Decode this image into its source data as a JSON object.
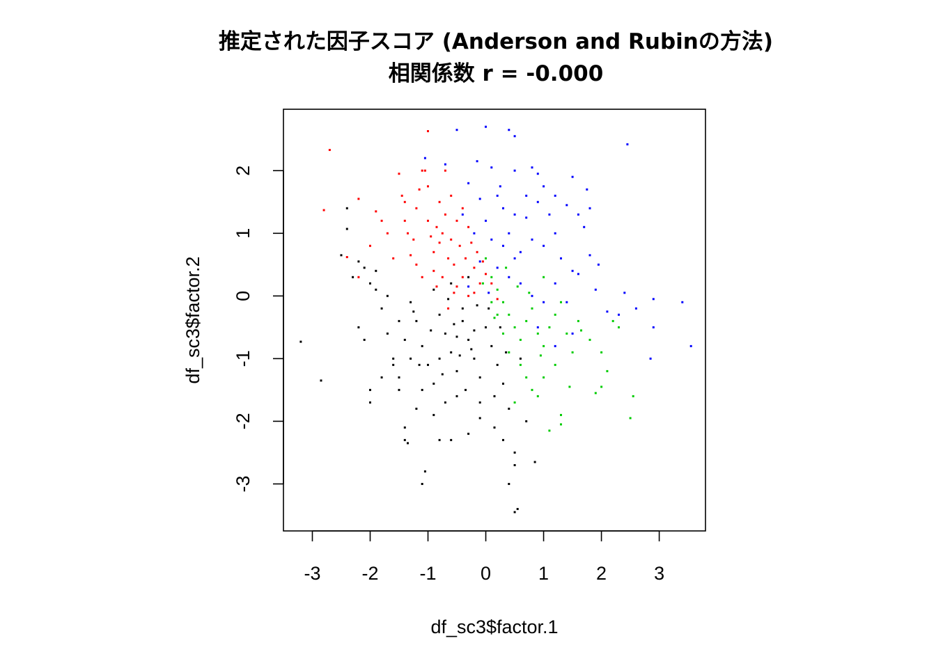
{
  "chart_data": {
    "type": "scatter",
    "title": "推定された因子スコア (Anderson and Rubinの方法)",
    "subtitle": "相関係数 r = -0.000",
    "xlabel": "df_sc3$factor.1",
    "ylabel": "df_sc3$factor.2",
    "xlim": [
      -3.5,
      3.8
    ],
    "ylim": [
      -3.75,
      2.98
    ],
    "x_ticks": [
      -3,
      -2,
      -1,
      0,
      1,
      2,
      3
    ],
    "y_ticks": [
      -3,
      -2,
      -1,
      0,
      1,
      2
    ],
    "x_tick_labels": [
      "-3",
      "-2",
      "-1",
      "0",
      "1",
      "2",
      "3"
    ],
    "y_tick_labels": [
      "-3",
      "-2",
      "-1",
      "0",
      "1",
      "2"
    ],
    "grid": false,
    "legend": "none",
    "series": [
      {
        "color": "#FF0000",
        "points": [
          [
            -2.7,
            2.33
          ],
          [
            -2.8,
            1.37
          ],
          [
            -2.2,
            1.55
          ],
          [
            -2.4,
            0.62
          ],
          [
            -2.2,
            0.3
          ],
          [
            -2.0,
            0.8
          ],
          [
            -1.9,
            1.35
          ],
          [
            -1.8,
            1.2
          ],
          [
            -1.7,
            1.0
          ],
          [
            -1.5,
            1.95
          ],
          [
            -1.45,
            1.6
          ],
          [
            -1.4,
            1.2
          ],
          [
            -1.35,
            1.0
          ],
          [
            -1.3,
            0.65
          ],
          [
            -1.25,
            0.9
          ],
          [
            -1.2,
            1.4
          ],
          [
            -1.15,
            1.7
          ],
          [
            -1.1,
            2.0
          ],
          [
            -1.05,
            2.0
          ],
          [
            -1.0,
            1.75
          ],
          [
            -1.0,
            1.2
          ],
          [
            -0.95,
            0.95
          ],
          [
            -0.9,
            0.7
          ],
          [
            -0.9,
            0.4
          ],
          [
            -0.85,
            1.1
          ],
          [
            -0.8,
            1.5
          ],
          [
            -0.8,
            0.85
          ],
          [
            -0.75,
            0.3
          ],
          [
            -0.7,
            2.0
          ],
          [
            -0.7,
            1.3
          ],
          [
            -0.65,
            0.6
          ],
          [
            -0.6,
            1.6
          ],
          [
            -0.6,
            0.9
          ],
          [
            -0.55,
            0.5
          ],
          [
            -0.5,
            1.2
          ],
          [
            -0.5,
            0.15
          ],
          [
            -0.45,
            0.8
          ],
          [
            -0.4,
            1.4
          ],
          [
            -0.4,
            0.3
          ],
          [
            -0.35,
            0.6
          ],
          [
            -0.3,
            1.1
          ],
          [
            -0.3,
            0.0
          ],
          [
            -0.25,
            0.85
          ],
          [
            -0.2,
            0.45
          ],
          [
            -0.15,
            0.7
          ],
          [
            -0.1,
            0.2
          ],
          [
            -0.05,
            0.55
          ],
          [
            0.0,
            0.35
          ],
          [
            -1.0,
            2.63
          ],
          [
            -1.4,
            1.5
          ],
          [
            -1.2,
            0.5
          ],
          [
            -0.65,
            -0.2
          ],
          [
            -0.85,
            0.15
          ],
          [
            -0.55,
            0.05
          ],
          [
            -0.2,
            0.05
          ],
          [
            0.2,
            -0.05
          ],
          [
            0.1,
            0.2
          ],
          [
            -1.6,
            0.6
          ],
          [
            -1.1,
            0.3
          ],
          [
            -0.75,
            1.0
          ]
        ]
      },
      {
        "color": "#0000FF",
        "points": [
          [
            0.0,
            2.7
          ],
          [
            -0.5,
            2.65
          ],
          [
            0.4,
            2.65
          ],
          [
            0.5,
            2.55
          ],
          [
            -0.7,
            2.1
          ],
          [
            -1.05,
            2.2
          ],
          [
            -0.15,
            2.15
          ],
          [
            0.1,
            2.05
          ],
          [
            0.5,
            2.0
          ],
          [
            0.8,
            2.05
          ],
          [
            0.9,
            1.95
          ],
          [
            1.0,
            1.75
          ],
          [
            1.5,
            1.9
          ],
          [
            1.75,
            1.7
          ],
          [
            1.8,
            1.4
          ],
          [
            2.45,
            2.42
          ],
          [
            -0.3,
            1.8
          ],
          [
            -0.1,
            1.55
          ],
          [
            0.2,
            1.6
          ],
          [
            0.3,
            1.4
          ],
          [
            0.5,
            1.3
          ],
          [
            0.7,
            1.25
          ],
          [
            0.9,
            1.5
          ],
          [
            1.2,
            1.6
          ],
          [
            1.4,
            1.45
          ],
          [
            1.6,
            1.3
          ],
          [
            1.7,
            1.1
          ],
          [
            -0.4,
            1.3
          ],
          [
            -0.2,
            1.0
          ],
          [
            0.0,
            1.2
          ],
          [
            0.1,
            0.9
          ],
          [
            0.3,
            0.8
          ],
          [
            0.4,
            1.0
          ],
          [
            0.6,
            0.7
          ],
          [
            0.8,
            0.9
          ],
          [
            1.0,
            0.8
          ],
          [
            1.2,
            1.0
          ],
          [
            1.3,
            0.6
          ],
          [
            1.5,
            0.4
          ],
          [
            1.8,
            0.65
          ],
          [
            1.95,
            0.5
          ],
          [
            -0.1,
            0.55
          ],
          [
            0.2,
            0.45
          ],
          [
            0.4,
            0.3
          ],
          [
            0.6,
            0.2
          ],
          [
            0.8,
            0.0
          ],
          [
            1.0,
            -0.1
          ],
          [
            1.2,
            0.2
          ],
          [
            1.4,
            -0.1
          ],
          [
            1.6,
            0.35
          ],
          [
            1.9,
            0.1
          ],
          [
            2.1,
            -0.25
          ],
          [
            2.3,
            -0.3
          ],
          [
            2.4,
            0.05
          ],
          [
            2.6,
            -0.2
          ],
          [
            2.9,
            -0.05
          ],
          [
            2.9,
            -0.5
          ],
          [
            3.4,
            -0.1
          ],
          [
            3.55,
            -0.8
          ],
          [
            2.85,
            -1.0
          ],
          [
            1.2,
            -0.8
          ],
          [
            1.5,
            -0.6
          ],
          [
            0.9,
            -0.5
          ],
          [
            0.5,
            0.6
          ],
          [
            0.7,
            1.6
          ],
          [
            1.1,
            1.3
          ],
          [
            0.25,
            1.75
          ],
          [
            -0.3,
            0.15
          ],
          [
            0.05,
            0.05
          ]
        ]
      },
      {
        "color": "#00CC00",
        "points": [
          [
            0.0,
            0.6
          ],
          [
            0.1,
            0.3
          ],
          [
            0.2,
            0.1
          ],
          [
            0.3,
            -0.1
          ],
          [
            0.4,
            -0.3
          ],
          [
            0.5,
            -0.5
          ],
          [
            0.6,
            -0.7
          ],
          [
            0.7,
            -0.4
          ],
          [
            0.8,
            -0.2
          ],
          [
            0.9,
            -0.6
          ],
          [
            1.0,
            -0.8
          ],
          [
            1.1,
            -0.5
          ],
          [
            1.2,
            -0.3
          ],
          [
            1.3,
            -0.1
          ],
          [
            1.4,
            -0.6
          ],
          [
            1.5,
            -0.9
          ],
          [
            1.6,
            -0.4
          ],
          [
            1.8,
            -0.7
          ],
          [
            2.0,
            -0.9
          ],
          [
            2.1,
            -1.2
          ],
          [
            2.2,
            -0.4
          ],
          [
            2.3,
            -0.5
          ],
          [
            2.0,
            -1.45
          ],
          [
            1.9,
            -1.55
          ],
          [
            2.55,
            -1.6
          ],
          [
            2.5,
            -1.95
          ],
          [
            1.3,
            -1.9
          ],
          [
            1.3,
            -2.05
          ],
          [
            1.1,
            -2.15
          ],
          [
            0.9,
            -1.6
          ],
          [
            0.7,
            -1.3
          ],
          [
            0.5,
            -1.7
          ],
          [
            0.6,
            -1.1
          ],
          [
            0.4,
            -0.9
          ],
          [
            0.3,
            -0.6
          ],
          [
            0.2,
            -0.3
          ],
          [
            0.1,
            -0.1
          ],
          [
            0.8,
            -1.5
          ],
          [
            1.0,
            -1.3
          ],
          [
            1.2,
            -1.1
          ],
          [
            1.45,
            -1.45
          ],
          [
            0.35,
            0.45
          ],
          [
            0.55,
            0.15
          ],
          [
            0.75,
            0.05
          ],
          [
            1.0,
            0.3
          ],
          [
            0.15,
            -0.35
          ],
          [
            -0.05,
            0.2
          ],
          [
            1.65,
            -0.55
          ],
          [
            0.95,
            -0.95
          ]
        ]
      },
      {
        "color": "#000000",
        "points": [
          [
            -3.2,
            -0.73
          ],
          [
            -2.85,
            -1.35
          ],
          [
            -2.4,
            1.4
          ],
          [
            -2.4,
            1.07
          ],
          [
            -2.2,
            0.55
          ],
          [
            -2.3,
            0.3
          ],
          [
            -2.1,
            0.45
          ],
          [
            -2.0,
            0.2
          ],
          [
            -2.2,
            -0.5
          ],
          [
            -2.1,
            -0.7
          ],
          [
            -2.0,
            -1.5
          ],
          [
            -2.0,
            -1.7
          ],
          [
            -1.9,
            0.1
          ],
          [
            -1.8,
            -0.2
          ],
          [
            -1.7,
            -0.6
          ],
          [
            -1.6,
            -1.0
          ],
          [
            -1.5,
            -1.3
          ],
          [
            -1.5,
            -1.5
          ],
          [
            -1.4,
            -2.1
          ],
          [
            -1.4,
            -2.3
          ],
          [
            -1.35,
            -2.35
          ],
          [
            -1.2,
            -0.4
          ],
          [
            -1.1,
            -0.8
          ],
          [
            -1.0,
            -1.1
          ],
          [
            -0.9,
            -1.4
          ],
          [
            -0.9,
            -1.9
          ],
          [
            -0.8,
            -0.3
          ],
          [
            -0.7,
            -0.6
          ],
          [
            -0.6,
            -0.9
          ],
          [
            -0.5,
            -1.2
          ],
          [
            -0.5,
            -1.6
          ],
          [
            -0.4,
            -0.4
          ],
          [
            -0.3,
            -0.7
          ],
          [
            -0.2,
            -1.0
          ],
          [
            -0.1,
            -1.3
          ],
          [
            -0.1,
            -1.7
          ],
          [
            0.0,
            -0.5
          ],
          [
            0.1,
            -0.8
          ],
          [
            0.2,
            -1.1
          ],
          [
            0.3,
            -1.4
          ],
          [
            0.4,
            -1.8
          ],
          [
            0.5,
            -2.5
          ],
          [
            0.5,
            -2.7
          ],
          [
            0.4,
            -3.0
          ],
          [
            0.5,
            -3.45
          ],
          [
            0.55,
            -3.4
          ],
          [
            0.85,
            -2.65
          ],
          [
            -1.1,
            -3.0
          ],
          [
            -1.05,
            -2.8
          ],
          [
            -1.3,
            -0.1
          ],
          [
            -1.5,
            -0.4
          ],
          [
            -1.7,
            0.0
          ],
          [
            -1.3,
            -1.0
          ],
          [
            -1.1,
            -1.5
          ],
          [
            -0.7,
            -1.7
          ],
          [
            -0.6,
            -2.3
          ],
          [
            -0.3,
            -2.2
          ],
          [
            -0.1,
            -1.95
          ],
          [
            0.15,
            -2.1
          ],
          [
            0.3,
            -2.3
          ],
          [
            -0.9,
            0.1
          ],
          [
            -0.6,
            0.2
          ],
          [
            -0.3,
            0.3
          ],
          [
            -0.8,
            -1.0
          ],
          [
            -0.4,
            -0.2
          ],
          [
            -0.2,
            -0.55
          ],
          [
            0.05,
            -0.2
          ],
          [
            0.25,
            -0.5
          ],
          [
            0.35,
            -0.9
          ],
          [
            -1.6,
            -1.1
          ],
          [
            -1.8,
            -1.3
          ],
          [
            -1.2,
            -1.8
          ],
          [
            -0.95,
            -0.55
          ],
          [
            -0.45,
            -0.95
          ],
          [
            -0.15,
            -0.15
          ],
          [
            -1.4,
            -0.7
          ],
          [
            -0.75,
            -1.25
          ],
          [
            -0.55,
            -0.45
          ],
          [
            -0.35,
            -1.5
          ],
          [
            0.6,
            -1.0
          ],
          [
            0.7,
            -2.0
          ],
          [
            -0.8,
            -2.3
          ],
          [
            -2.5,
            0.65
          ],
          [
            -1.9,
            0.4
          ],
          [
            -1.25,
            -0.25
          ],
          [
            -0.65,
            -0.05
          ],
          [
            -0.25,
            -0.85
          ],
          [
            0.15,
            -1.6
          ],
          [
            -1.15,
            -1.1
          ],
          [
            -0.5,
            -0.65
          ]
        ]
      }
    ]
  }
}
